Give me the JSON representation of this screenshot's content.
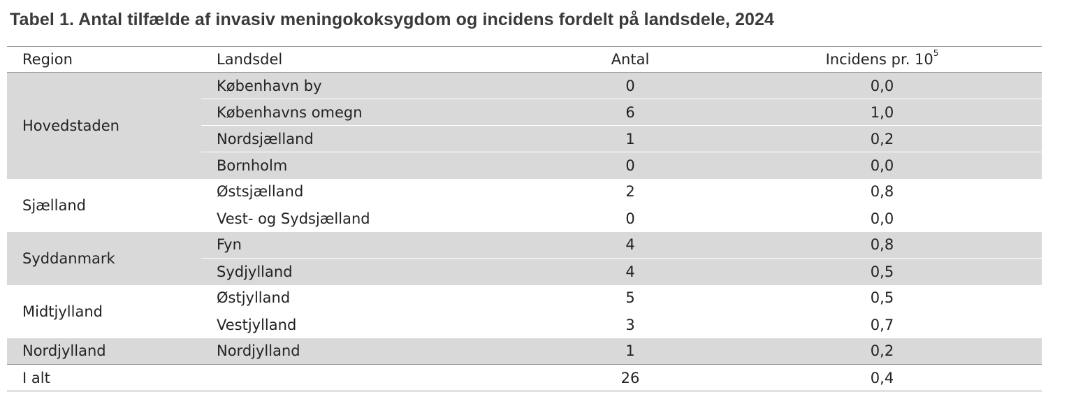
{
  "title": "Tabel 1. Antal tilfælde af invasiv meningokoksygdom og incidens fordelt på landsdele, 2024",
  "columns": {
    "region": "Region",
    "landsdel": "Landsdel",
    "antal": "Antal",
    "incidens": "Incidens pr. 10",
    "incidens_sup": "5"
  },
  "groups": [
    {
      "region": "Hovedstaden",
      "rows": [
        {
          "landsdel": "København by",
          "antal": "0",
          "incidens": "0,0"
        },
        {
          "landsdel": "Københavns omegn",
          "antal": "6",
          "incidens": "1,0"
        },
        {
          "landsdel": "Nordsjælland",
          "antal": "1",
          "incidens": "0,2"
        },
        {
          "landsdel": "Bornholm",
          "antal": "0",
          "incidens": "0,0"
        }
      ]
    },
    {
      "region": "Sjælland",
      "rows": [
        {
          "landsdel": "Østsjælland",
          "antal": "2",
          "incidens": "0,8"
        },
        {
          "landsdel": "Vest- og Sydsjælland",
          "antal": "0",
          "incidens": "0,0"
        }
      ]
    },
    {
      "region": "Syddanmark",
      "rows": [
        {
          "landsdel": "Fyn",
          "antal": "4",
          "incidens": "0,8"
        },
        {
          "landsdel": "Sydjylland",
          "antal": "4",
          "incidens": "0,5"
        }
      ]
    },
    {
      "region": "Midtjylland",
      "rows": [
        {
          "landsdel": "Østjylland",
          "antal": "5",
          "incidens": "0,5"
        },
        {
          "landsdel": "Vestjylland",
          "antal": "3",
          "incidens": "0,7"
        }
      ]
    },
    {
      "region": "Nordjylland",
      "rows": [
        {
          "landsdel": "Nordjylland",
          "antal": "1",
          "incidens": "0,2"
        }
      ]
    }
  ],
  "total": {
    "label": "I alt",
    "antal": "26",
    "incidens": "0,4"
  },
  "colors": {
    "shade": "#d9d9d9",
    "rule": "#999999",
    "title": "#3a3a3a"
  }
}
